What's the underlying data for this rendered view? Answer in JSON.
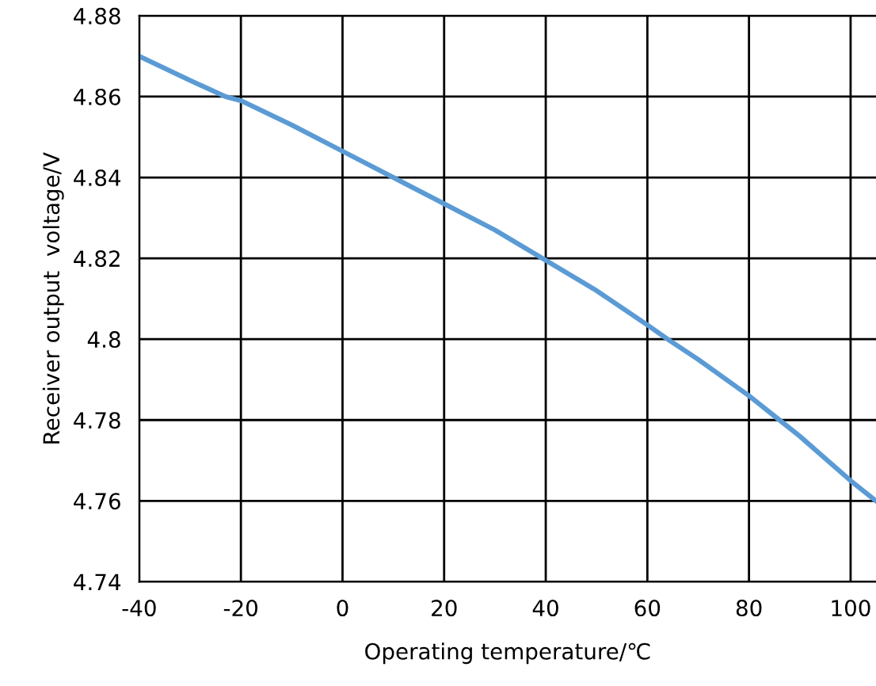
{
  "chart_data": {
    "type": "line",
    "xlabel": "Operating temperature/℃",
    "ylabel": "Receiver output  voltage/V",
    "x": [
      -40,
      -30,
      -23,
      -20,
      -10,
      0,
      10,
      20,
      30,
      40,
      50,
      60,
      64,
      70,
      80,
      86,
      90,
      100,
      105
    ],
    "series": [
      {
        "color": "#5b9bd5",
        "values": [
          4.87,
          4.864,
          4.86,
          4.859,
          4.853,
          4.8465,
          4.84,
          4.8335,
          4.827,
          4.8195,
          4.812,
          4.8035,
          4.8,
          4.795,
          4.786,
          4.78,
          4.776,
          4.765,
          4.76
        ]
      }
    ],
    "xlim": [
      -40,
      105
    ],
    "xticks": [
      -40,
      -20,
      0,
      20,
      40,
      60,
      80,
      100
    ],
    "ylim": [
      4.74,
      4.88
    ],
    "yticks": [
      4.74,
      4.76,
      4.78,
      {
        "value": 4.8,
        "label": "4.8"
      },
      4.82,
      4.84,
      4.86,
      4.88
    ],
    "grid": true,
    "marker": "none",
    "line_style": "solid"
  }
}
